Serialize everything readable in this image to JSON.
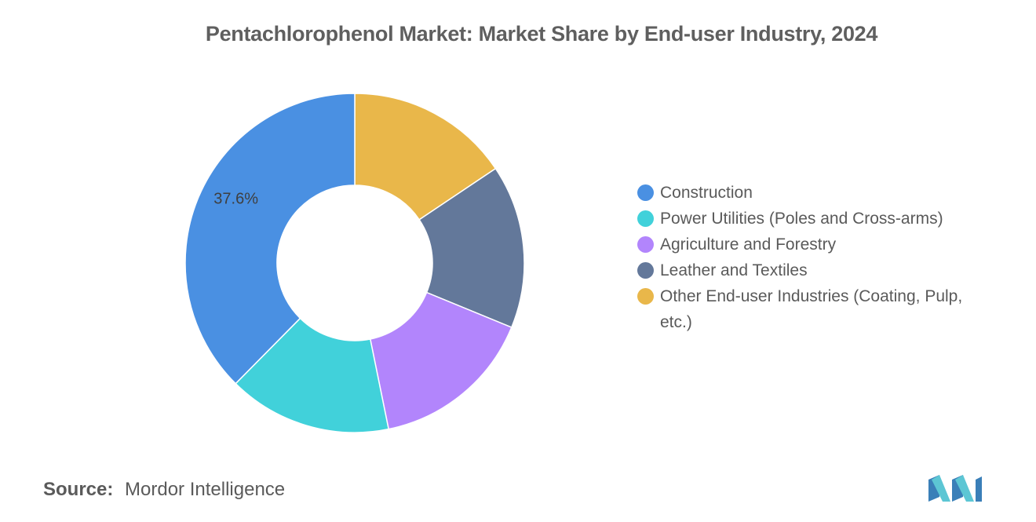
{
  "header": {
    "title": "Pentachlorophenol Market: Market Share by End-user Industry, 2024"
  },
  "chart_data": {
    "type": "pie",
    "donut": true,
    "title": "Pentachlorophenol Market: Market Share by End-user Industry, 2024",
    "categories": [
      "Construction",
      "Power Utilities (Poles and Cross-arms)",
      "Agriculture and Forestry",
      "Leather and Textiles",
      "Other End-user Industries (Coating, Pulp, etc.)"
    ],
    "values": [
      37.6,
      15.6,
      15.6,
      15.6,
      15.6
    ],
    "colors": [
      "#4a90e2",
      "#41d1da",
      "#b285fc",
      "#63789a",
      "#e9b74a"
    ],
    "data_labels": [
      "37.6%",
      "",
      "",
      "",
      ""
    ],
    "legend_position": "right",
    "start_angle_deg": 0,
    "direction": "clockwise",
    "order_clockwise_from_top": [
      4,
      3,
      2,
      1,
      0
    ]
  },
  "footer": {
    "source_label": "Source:",
    "source_value": "Mordor Intelligence"
  },
  "logo": {
    "icon": "mordor-intelligence-logo-icon"
  }
}
